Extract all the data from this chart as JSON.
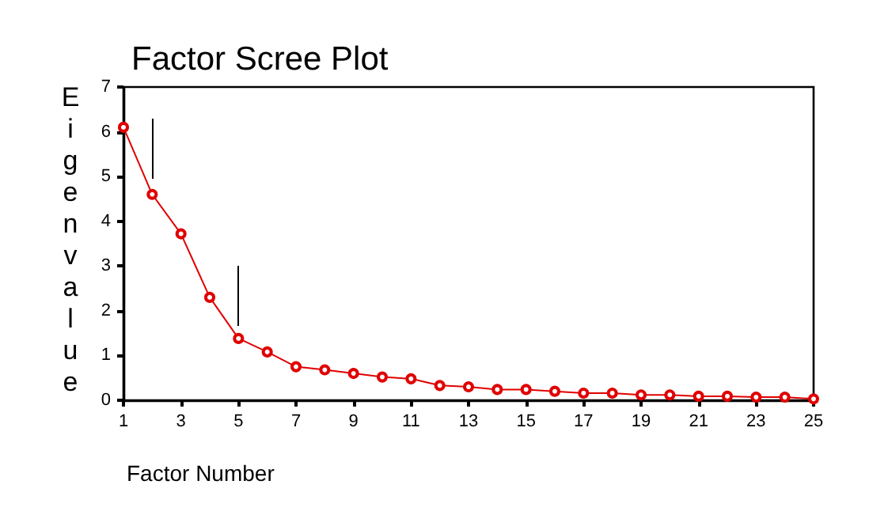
{
  "chart_data": {
    "type": "line",
    "title": "Factor Scree Plot",
    "xlabel": "Factor Number",
    "ylabel": "Eigenvalue",
    "x": [
      1,
      2,
      3,
      4,
      5,
      6,
      7,
      8,
      9,
      10,
      11,
      12,
      13,
      14,
      15,
      16,
      17,
      18,
      19,
      20,
      21,
      22,
      23,
      24,
      25
    ],
    "series": [
      {
        "color": "#e00000",
        "values": [
          6.1,
          4.6,
          3.72,
          2.3,
          1.38,
          1.08,
          0.75,
          0.68,
          0.6,
          0.52,
          0.48,
          0.33,
          0.3,
          0.24,
          0.24,
          0.2,
          0.16,
          0.16,
          0.12,
          0.12,
          0.09,
          0.09,
          0.07,
          0.07,
          0.03
        ]
      }
    ],
    "xlim": [
      1,
      25
    ],
    "xticks": [
      1,
      3,
      5,
      7,
      9,
      11,
      13,
      15,
      17,
      19,
      21,
      23,
      25
    ],
    "ylim": [
      0,
      7
    ],
    "yticks": [
      0,
      1,
      2,
      3,
      4,
      5,
      6,
      7
    ],
    "marker": "circle",
    "line_style": "solid"
  }
}
